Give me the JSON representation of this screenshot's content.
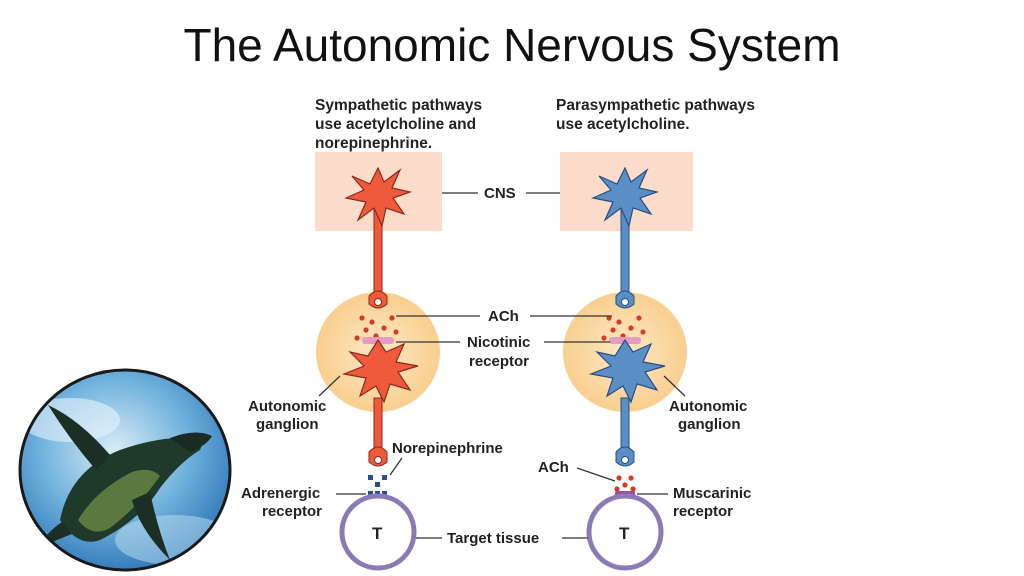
{
  "title": "The Autonomic Nervous System",
  "sympathetic": {
    "caption_line1": "Sympathetic pathways",
    "caption_line2": "use acetylcholine and",
    "caption_line3": "norepinephrine.",
    "ganglion_line1": "Autonomic",
    "ganglion_line2": "ganglion",
    "neurotransmitter": "Norepinephrine",
    "receptor_line1": "Adrenergic",
    "receptor_line2": "receptor",
    "target_letter": "T",
    "color": "#f05a3c"
  },
  "parasympathetic": {
    "caption_line1": "Parasympathetic pathways",
    "caption_line2": "use acetylcholine.",
    "ganglion_line1": "Autonomic",
    "ganglion_line2": "ganglion",
    "neurotransmitter": "ACh",
    "receptor_line1": "Muscarinic",
    "receptor_line2": "receptor",
    "target_letter": "T",
    "color": "#5a8fc6"
  },
  "shared_labels": {
    "cns": "CNS",
    "ach": "ACh",
    "nicotinic_line1": "Nicotinic",
    "nicotinic_line2": "receptor",
    "target_tissue": "Target tissue"
  },
  "colors": {
    "cns_box": "#fbdccb",
    "ganglion": "#fbd9a2",
    "ach_dots": "#d43a2a",
    "nicotinic_receptor": "#e89ac0",
    "adrenergic_receptor": "#2a4d90",
    "muscarinic_receptor": "#a44a9a",
    "target_ring": "#8a7bb5"
  },
  "photo": {
    "subject": "penguin-swimming-photo"
  }
}
